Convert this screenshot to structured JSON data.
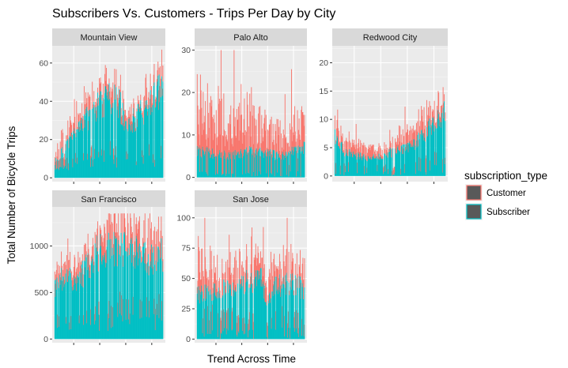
{
  "chart_data": {
    "type": "bar",
    "title": "Subscribers Vs. Customers - Trips Per Day by City",
    "xlabel": "Trend Across Time",
    "ylabel": "Total Number of Bicycle Trips",
    "stacked": true,
    "grid": true,
    "legend": {
      "title": "subscription_type",
      "position": "right",
      "entries": [
        {
          "name": "Customer",
          "color": "#F8766D"
        },
        {
          "name": "Subscriber",
          "color": "#00BFC4"
        }
      ]
    },
    "series_order": [
      "Customer",
      "Subscriber"
    ],
    "panels": [
      {
        "name": "Mountain View",
        "ylim": [
          -2,
          69
        ],
        "yticks": [
          0,
          20,
          40,
          60
        ],
        "subscriber_anchors": [
          [
            0,
            8
          ],
          [
            0.1,
            16
          ],
          [
            0.2,
            22
          ],
          [
            0.3,
            30
          ],
          [
            0.4,
            37
          ],
          [
            0.5,
            40
          ],
          [
            0.6,
            38
          ],
          [
            0.65,
            27
          ],
          [
            0.7,
            28
          ],
          [
            0.8,
            33
          ],
          [
            0.9,
            40
          ],
          [
            1,
            45
          ]
        ],
        "customer_anchors": [
          [
            0,
            7
          ],
          [
            0.2,
            5
          ],
          [
            0.4,
            5
          ],
          [
            0.5,
            7
          ],
          [
            0.8,
            3
          ],
          [
            0.9,
            7
          ],
          [
            1,
            6
          ]
        ],
        "subscriber_range": [
          4,
          56
        ],
        "total_max": 67
      },
      {
        "name": "Palo Alto",
        "ylim": [
          -1,
          31
        ],
        "yticks": [
          0,
          10,
          20,
          30
        ],
        "subscriber_anchors": [
          [
            0,
            6
          ],
          [
            0.3,
            5
          ],
          [
            0.5,
            6
          ],
          [
            0.8,
            5
          ],
          [
            1,
            7
          ]
        ],
        "customer_anchors": [
          [
            0,
            10
          ],
          [
            0.2,
            8
          ],
          [
            0.4,
            9
          ],
          [
            0.5,
            8
          ],
          [
            0.6,
            6
          ],
          [
            0.8,
            5
          ],
          [
            1,
            6
          ]
        ],
        "subscriber_range": [
          0,
          15
        ],
        "total_max": 30
      },
      {
        "name": "Redwood City",
        "ylim": [
          -1,
          23
        ],
        "yticks": [
          0,
          5,
          10,
          15,
          20
        ],
        "subscriber_anchors": [
          [
            0,
            7
          ],
          [
            0.1,
            4
          ],
          [
            0.3,
            3
          ],
          [
            0.5,
            4
          ],
          [
            0.7,
            5
          ],
          [
            0.85,
            8
          ],
          [
            1,
            11
          ]
        ],
        "customer_anchors": [
          [
            0,
            2
          ],
          [
            0.5,
            1
          ],
          [
            0.85,
            3
          ],
          [
            1,
            2
          ]
        ],
        "subscriber_range": [
          0,
          17
        ],
        "total_max": 22
      },
      {
        "name": "San Francisco",
        "ylim": [
          -40,
          1420
        ],
        "yticks": [
          0,
          500,
          1000
        ],
        "subscriber_anchors": [
          [
            0,
            560
          ],
          [
            0.1,
            650
          ],
          [
            0.2,
            560
          ],
          [
            0.3,
            760
          ],
          [
            0.4,
            900
          ],
          [
            0.5,
            960
          ],
          [
            0.6,
            950
          ],
          [
            0.7,
            930
          ],
          [
            0.8,
            860
          ],
          [
            0.9,
            840
          ],
          [
            1,
            900
          ]
        ],
        "customer_anchors": [
          [
            0,
            130
          ],
          [
            0.3,
            150
          ],
          [
            0.5,
            220
          ],
          [
            0.6,
            200
          ],
          [
            0.8,
            230
          ],
          [
            1,
            240
          ]
        ],
        "subscriber_range": [
          80,
          1150
        ],
        "total_max": 1350
      },
      {
        "name": "San Jose",
        "ylim": [
          -3,
          109
        ],
        "yticks": [
          0,
          25,
          50,
          75,
          100
        ],
        "subscriber_anchors": [
          [
            0,
            35
          ],
          [
            0.2,
            40
          ],
          [
            0.4,
            45
          ],
          [
            0.6,
            48
          ],
          [
            0.65,
            25
          ],
          [
            0.7,
            42
          ],
          [
            0.85,
            45
          ],
          [
            1,
            40
          ]
        ],
        "customer_anchors": [
          [
            0,
            22
          ],
          [
            0.3,
            18
          ],
          [
            0.5,
            14
          ],
          [
            0.8,
            15
          ],
          [
            1,
            14
          ]
        ],
        "subscriber_range": [
          0,
          82
        ],
        "total_max": 100
      }
    ]
  }
}
